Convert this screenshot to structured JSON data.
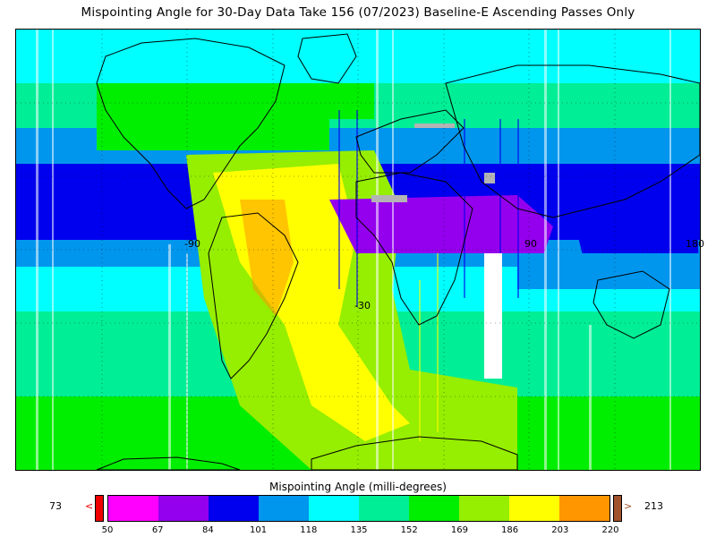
{
  "title": "Mispointing Angle for 30-Day Data Take 156 (07/2023) Baseline-E Ascending Passes Only",
  "map": {
    "lat_labels": [
      "-30"
    ],
    "lon_labels": [
      "-90",
      "90",
      "180"
    ],
    "lon_min": -180,
    "lon_max": 180,
    "lat_min": -90,
    "lat_max": 90,
    "grid": true,
    "data_field": "mispointing angle (milli-degrees)",
    "pattern_note": "Continuous color field with vertical swath streaks; highest values (yellow/orange) over South America and the tropical Atlantic, lowest (blue/purple) along the equator over Africa and the Indian Ocean"
  },
  "colorbar": {
    "label": "Mispointing Angle (milli-degrees)",
    "min_value": "73",
    "max_value": "213",
    "under_arrow": "<",
    "over_arrow": ">",
    "under_color": "#ee0000",
    "over_color": "#a0522d",
    "ticks": [
      "50",
      "67",
      "84",
      "101",
      "118",
      "135",
      "152",
      "169",
      "186",
      "203",
      "220"
    ],
    "colors": [
      "#ff00ff",
      "#9400ee",
      "#0000ee",
      "#0096ee",
      "#00ffff",
      "#00ee96",
      "#00ee00",
      "#96ee00",
      "#ffff00",
      "#ff9600"
    ]
  }
}
